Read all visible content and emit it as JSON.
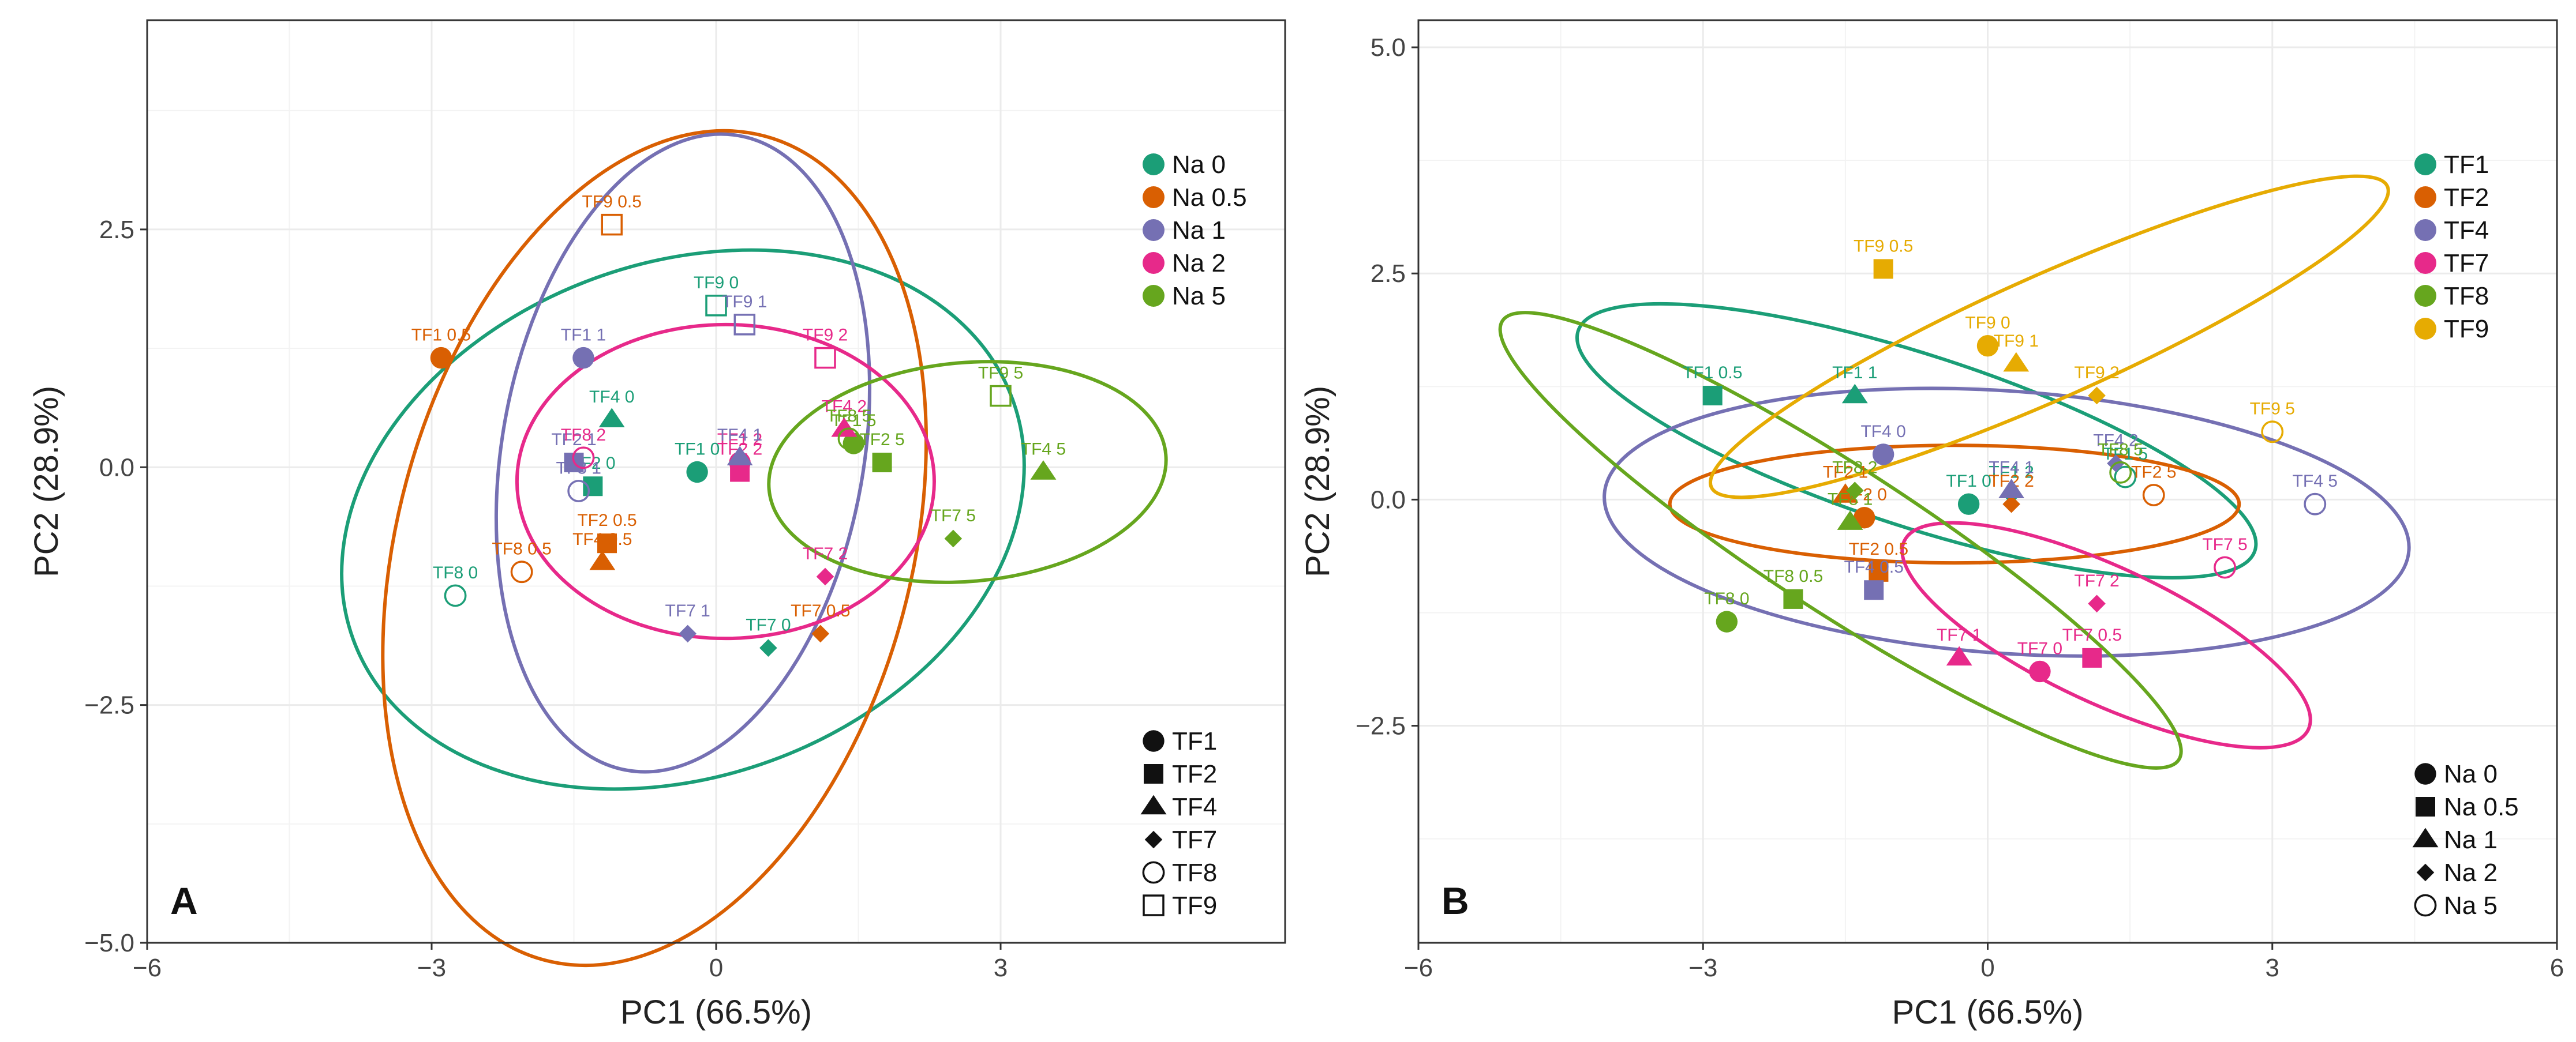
{
  "colors": {
    "teal": "#1b9e77",
    "orange": "#d95f02",
    "purple": "#7570b3",
    "pink": "#e7298a",
    "green": "#66a61e",
    "gold": "#e6ab02",
    "grid": "#ebebeb",
    "frame": "#333333"
  },
  "chart_data": [
    {
      "type": "scatter",
      "panel_label": "A",
      "xlabel": "PC1 (66.5%)",
      "ylabel": "PC2 (28.9%)",
      "xlim": [
        -6,
        6
      ],
      "ylim": [
        -5,
        4.7
      ],
      "xticks": [
        {
          "v": -6,
          "label": "−6"
        },
        {
          "v": -3,
          "label": "−3"
        },
        {
          "v": 0,
          "label": "0"
        },
        {
          "v": 3,
          "label": "3"
        }
      ],
      "yticks": [
        {
          "v": -5,
          "label": "−5.0"
        },
        {
          "v": -2.5,
          "label": "−2.5"
        },
        {
          "v": 0,
          "label": "0.0"
        },
        {
          "v": 2.5,
          "label": "2.5"
        }
      ],
      "grid": true,
      "color_by": "na",
      "shape_by": "tf",
      "legend_color": {
        "placement": "top-right",
        "entries": [
          {
            "label": "Na 0",
            "color": "#1b9e77"
          },
          {
            "label": "Na 0.5",
            "color": "#d95f02"
          },
          {
            "label": "Na 1",
            "color": "#7570b3"
          },
          {
            "label": "Na 2",
            "color": "#e7298a"
          },
          {
            "label": "Na 5",
            "color": "#66a61e"
          }
        ]
      },
      "legend_shape": {
        "placement": "bottom-right",
        "entries": [
          {
            "label": "TF1",
            "shape": "circle"
          },
          {
            "label": "TF2",
            "shape": "square"
          },
          {
            "label": "TF4",
            "shape": "triangle"
          },
          {
            "label": "TF7",
            "shape": "diamond"
          },
          {
            "label": "TF8",
            "shape": "open-circle"
          },
          {
            "label": "TF9",
            "shape": "open-square"
          }
        ]
      },
      "ellipses": [
        {
          "group": "Na 0",
          "color": "#1b9e77",
          "cx": -0.35,
          "cy": -0.55,
          "rx": 3.7,
          "ry": 2.7,
          "angle": -20
        },
        {
          "group": "Na 0.5",
          "color": "#d95f02",
          "cx": -0.65,
          "cy": -0.85,
          "rx": 4.5,
          "ry": 2.7,
          "angle": -75
        },
        {
          "group": "Na 1",
          "color": "#7570b3",
          "cx": -0.35,
          "cy": 0.15,
          "rx": 3.4,
          "ry": 1.9,
          "angle": -80
        },
        {
          "group": "Na 2",
          "color": "#e7298a",
          "cx": 0.1,
          "cy": -0.15,
          "rx": 2.2,
          "ry": 1.65,
          "angle": 0
        },
        {
          "group": "Na 5",
          "color": "#66a61e",
          "cx": 2.65,
          "cy": -0.05,
          "rx": 2.1,
          "ry": 1.15,
          "angle": -5
        }
      ],
      "points": [
        {
          "label": "TF1 0",
          "tf": "TF1",
          "na": "Na 0",
          "x": -0.2,
          "y": -0.05
        },
        {
          "label": "TF1 0.5",
          "tf": "TF1",
          "na": "Na 0.5",
          "x": -2.9,
          "y": 1.15
        },
        {
          "label": "TF1 1",
          "tf": "TF1",
          "na": "Na 1",
          "x": -1.4,
          "y": 1.15
        },
        {
          "label": "TF1 2",
          "tf": "TF1",
          "na": "Na 2",
          "x": 0.25,
          "y": 0.05
        },
        {
          "label": "TF1 5",
          "tf": "TF1",
          "na": "Na 5",
          "x": 1.45,
          "y": 0.25
        },
        {
          "label": "TF2 0",
          "tf": "TF2",
          "na": "Na 0",
          "x": -1.3,
          "y": -0.2
        },
        {
          "label": "TF2 0.5",
          "tf": "TF2",
          "na": "Na 0.5",
          "x": -1.15,
          "y": -0.8
        },
        {
          "label": "TF2 1",
          "tf": "TF2",
          "na": "Na 1",
          "x": -1.5,
          "y": 0.05
        },
        {
          "label": "TF2 2",
          "tf": "TF2",
          "na": "Na 2",
          "x": 0.25,
          "y": -0.05
        },
        {
          "label": "TF2 5",
          "tf": "TF2",
          "na": "Na 5",
          "x": 1.75,
          "y": 0.05
        },
        {
          "label": "TF4 0",
          "tf": "TF4",
          "na": "Na 0",
          "x": -1.1,
          "y": 0.5
        },
        {
          "label": "TF4 0.5",
          "tf": "TF4",
          "na": "Na 0.5",
          "x": -1.2,
          "y": -1.0
        },
        {
          "label": "TF4 1",
          "tf": "TF4",
          "na": "Na 1",
          "x": 0.25,
          "y": 0.1
        },
        {
          "label": "TF4 2",
          "tf": "TF4",
          "na": "Na 2",
          "x": 1.35,
          "y": 0.4
        },
        {
          "label": "TF4 5",
          "tf": "TF4",
          "na": "Na 5",
          "x": 3.45,
          "y": -0.05
        },
        {
          "label": "TF7 0",
          "tf": "TF7",
          "na": "Na 0",
          "x": 0.55,
          "y": -1.9
        },
        {
          "label": "TF7 0.5",
          "tf": "TF7",
          "na": "Na 0.5",
          "x": 1.1,
          "y": -1.75
        },
        {
          "label": "TF7 1",
          "tf": "TF7",
          "na": "Na 1",
          "x": -0.3,
          "y": -1.75
        },
        {
          "label": "TF7 2",
          "tf": "TF7",
          "na": "Na 2",
          "x": 1.15,
          "y": -1.15
        },
        {
          "label": "TF7 5",
          "tf": "TF7",
          "na": "Na 5",
          "x": 2.5,
          "y": -0.75
        },
        {
          "label": "TF8 0",
          "tf": "TF8",
          "na": "Na 0",
          "x": -2.75,
          "y": -1.35
        },
        {
          "label": "TF8 0.5",
          "tf": "TF8",
          "na": "Na 0.5",
          "x": -2.05,
          "y": -1.1
        },
        {
          "label": "TF8 1",
          "tf": "TF8",
          "na": "Na 1",
          "x": -1.45,
          "y": -0.25
        },
        {
          "label": "TF8 2",
          "tf": "TF8",
          "na": "Na 2",
          "x": -1.4,
          "y": 0.1
        },
        {
          "label": "TF8 5",
          "tf": "TF8",
          "na": "Na 5",
          "x": 1.4,
          "y": 0.3
        },
        {
          "label": "TF9 0",
          "tf": "TF9",
          "na": "Na 0",
          "x": 0.0,
          "y": 1.7
        },
        {
          "label": "TF9 0.5",
          "tf": "TF9",
          "na": "Na 0.5",
          "x": -1.1,
          "y": 2.55
        },
        {
          "label": "TF9 1",
          "tf": "TF9",
          "na": "Na 1",
          "x": 0.3,
          "y": 1.5
        },
        {
          "label": "TF9 2",
          "tf": "TF9",
          "na": "Na 2",
          "x": 1.15,
          "y": 1.15
        },
        {
          "label": "TF9 5",
          "tf": "TF9",
          "na": "Na 5",
          "x": 3.0,
          "y": 0.75
        }
      ]
    },
    {
      "type": "scatter",
      "panel_label": "B",
      "xlabel": "PC1 (66.5%)",
      "ylabel": "PC2 (28.9%)",
      "xlim": [
        -6,
        6
      ],
      "ylim": [
        -4.9,
        5.3
      ],
      "xticks": [
        {
          "v": -6,
          "label": "−6"
        },
        {
          "v": -3,
          "label": "−3"
        },
        {
          "v": 0,
          "label": "0"
        },
        {
          "v": 3,
          "label": "3"
        },
        {
          "v": 6,
          "label": "6"
        }
      ],
      "yticks": [
        {
          "v": -2.5,
          "label": "−2.5"
        },
        {
          "v": 0,
          "label": "0.0"
        },
        {
          "v": 2.5,
          "label": "2.5"
        },
        {
          "v": 5,
          "label": "5.0"
        }
      ],
      "grid": true,
      "color_by": "tf",
      "shape_by": "na",
      "legend_color": {
        "placement": "top-right",
        "entries": [
          {
            "label": "TF1",
            "color": "#1b9e77"
          },
          {
            "label": "TF2",
            "color": "#d95f02"
          },
          {
            "label": "TF4",
            "color": "#7570b3"
          },
          {
            "label": "TF7",
            "color": "#e7298a"
          },
          {
            "label": "TF8",
            "color": "#66a61e"
          },
          {
            "label": "TF9",
            "color": "#e6ab02"
          }
        ]
      },
      "legend_shape": {
        "placement": "bottom-right",
        "entries": [
          {
            "label": "Na 0",
            "shape": "circle"
          },
          {
            "label": "Na 0.5",
            "shape": "square"
          },
          {
            "label": "Na 1",
            "shape": "triangle"
          },
          {
            "label": "Na 2",
            "shape": "diamond"
          },
          {
            "label": "Na 5",
            "shape": "open-circle"
          }
        ]
      },
      "ellipses": [
        {
          "group": "TF1",
          "color": "#1b9e77",
          "cx": -0.75,
          "cy": 0.65,
          "rx": 3.75,
          "ry": 0.95,
          "angle": 18
        },
        {
          "group": "TF2",
          "color": "#d95f02",
          "cx": -0.35,
          "cy": -0.05,
          "rx": 3.0,
          "ry": 0.65,
          "angle": 0
        },
        {
          "group": "TF4",
          "color": "#7570b3",
          "cx": 0.2,
          "cy": -0.25,
          "rx": 4.25,
          "ry": 1.45,
          "angle": 4
        },
        {
          "group": "TF7",
          "color": "#e7298a",
          "cx": 1.25,
          "cy": -1.5,
          "rx": 2.35,
          "ry": 0.75,
          "angle": 25
        },
        {
          "group": "TF8",
          "color": "#66a61e",
          "cx": -1.55,
          "cy": -0.45,
          "rx": 4.25,
          "ry": 0.8,
          "angle": 33
        },
        {
          "group": "TF9",
          "color": "#e6ab02",
          "cx": 0.65,
          "cy": 1.8,
          "rx": 3.9,
          "ry": 0.68,
          "angle": -24
        }
      ],
      "points": [
        {
          "label": "TF1 0",
          "tf": "TF1",
          "na": "Na 0",
          "x": -0.2,
          "y": -0.05
        },
        {
          "label": "TF1 0.5",
          "tf": "TF1",
          "na": "Na 0.5",
          "x": -2.9,
          "y": 1.15
        },
        {
          "label": "TF1 1",
          "tf": "TF1",
          "na": "Na 1",
          "x": -1.4,
          "y": 1.15
        },
        {
          "label": "TF1 2",
          "tf": "TF1",
          "na": "Na 2",
          "x": 0.25,
          "y": 0.05
        },
        {
          "label": "TF1 5",
          "tf": "TF1",
          "na": "Na 5",
          "x": 1.45,
          "y": 0.25
        },
        {
          "label": "TF2 0",
          "tf": "TF2",
          "na": "Na 0",
          "x": -1.3,
          "y": -0.2
        },
        {
          "label": "TF2 0.5",
          "tf": "TF2",
          "na": "Na 0.5",
          "x": -1.15,
          "y": -0.8
        },
        {
          "label": "TF2 1",
          "tf": "TF2",
          "na": "Na 1",
          "x": -1.5,
          "y": 0.05
        },
        {
          "label": "TF2 2",
          "tf": "TF2",
          "na": "Na 2",
          "x": 0.25,
          "y": -0.05
        },
        {
          "label": "TF2 5",
          "tf": "TF2",
          "na": "Na 5",
          "x": 1.75,
          "y": 0.05
        },
        {
          "label": "TF4 0",
          "tf": "TF4",
          "na": "Na 0",
          "x": -1.1,
          "y": 0.5
        },
        {
          "label": "TF4 0.5",
          "tf": "TF4",
          "na": "Na 0.5",
          "x": -1.2,
          "y": -1.0
        },
        {
          "label": "TF4 1",
          "tf": "TF4",
          "na": "Na 1",
          "x": 0.25,
          "y": 0.1
        },
        {
          "label": "TF4 2",
          "tf": "TF4",
          "na": "Na 2",
          "x": 1.35,
          "y": 0.4
        },
        {
          "label": "TF4 5",
          "tf": "TF4",
          "na": "Na 5",
          "x": 3.45,
          "y": -0.05
        },
        {
          "label": "TF7 0",
          "tf": "TF7",
          "na": "Na 0",
          "x": 0.55,
          "y": -1.9
        },
        {
          "label": "TF7 0.5",
          "tf": "TF7",
          "na": "Na 0.5",
          "x": 1.1,
          "y": -1.75
        },
        {
          "label": "TF7 1",
          "tf": "TF7",
          "na": "Na 1",
          "x": -0.3,
          "y": -1.75
        },
        {
          "label": "TF7 2",
          "tf": "TF7",
          "na": "Na 2",
          "x": 1.15,
          "y": -1.15
        },
        {
          "label": "TF7 5",
          "tf": "TF7",
          "na": "Na 5",
          "x": 2.5,
          "y": -0.75
        },
        {
          "label": "TF8 0",
          "tf": "TF8",
          "na": "Na 0",
          "x": -2.75,
          "y": -1.35
        },
        {
          "label": "TF8 0.5",
          "tf": "TF8",
          "na": "Na 0.5",
          "x": -2.05,
          "y": -1.1
        },
        {
          "label": "TF8 1",
          "tf": "TF8",
          "na": "Na 1",
          "x": -1.45,
          "y": -0.25
        },
        {
          "label": "TF8 2",
          "tf": "TF8",
          "na": "Na 2",
          "x": -1.4,
          "y": 0.1
        },
        {
          "label": "TF8 5",
          "tf": "TF8",
          "na": "Na 5",
          "x": 1.4,
          "y": 0.3
        },
        {
          "label": "TF9 0",
          "tf": "TF9",
          "na": "Na 0",
          "x": 0.0,
          "y": 1.7
        },
        {
          "label": "TF9 0.5",
          "tf": "TF9",
          "na": "Na 0.5",
          "x": -1.1,
          "y": 2.55
        },
        {
          "label": "TF9 1",
          "tf": "TF9",
          "na": "Na 1",
          "x": 0.3,
          "y": 1.5
        },
        {
          "label": "TF9 2",
          "tf": "TF9",
          "na": "Na 2",
          "x": 1.15,
          "y": 1.15
        },
        {
          "label": "TF9 5",
          "tf": "TF9",
          "na": "Na 5",
          "x": 3.0,
          "y": 0.75
        }
      ]
    }
  ]
}
